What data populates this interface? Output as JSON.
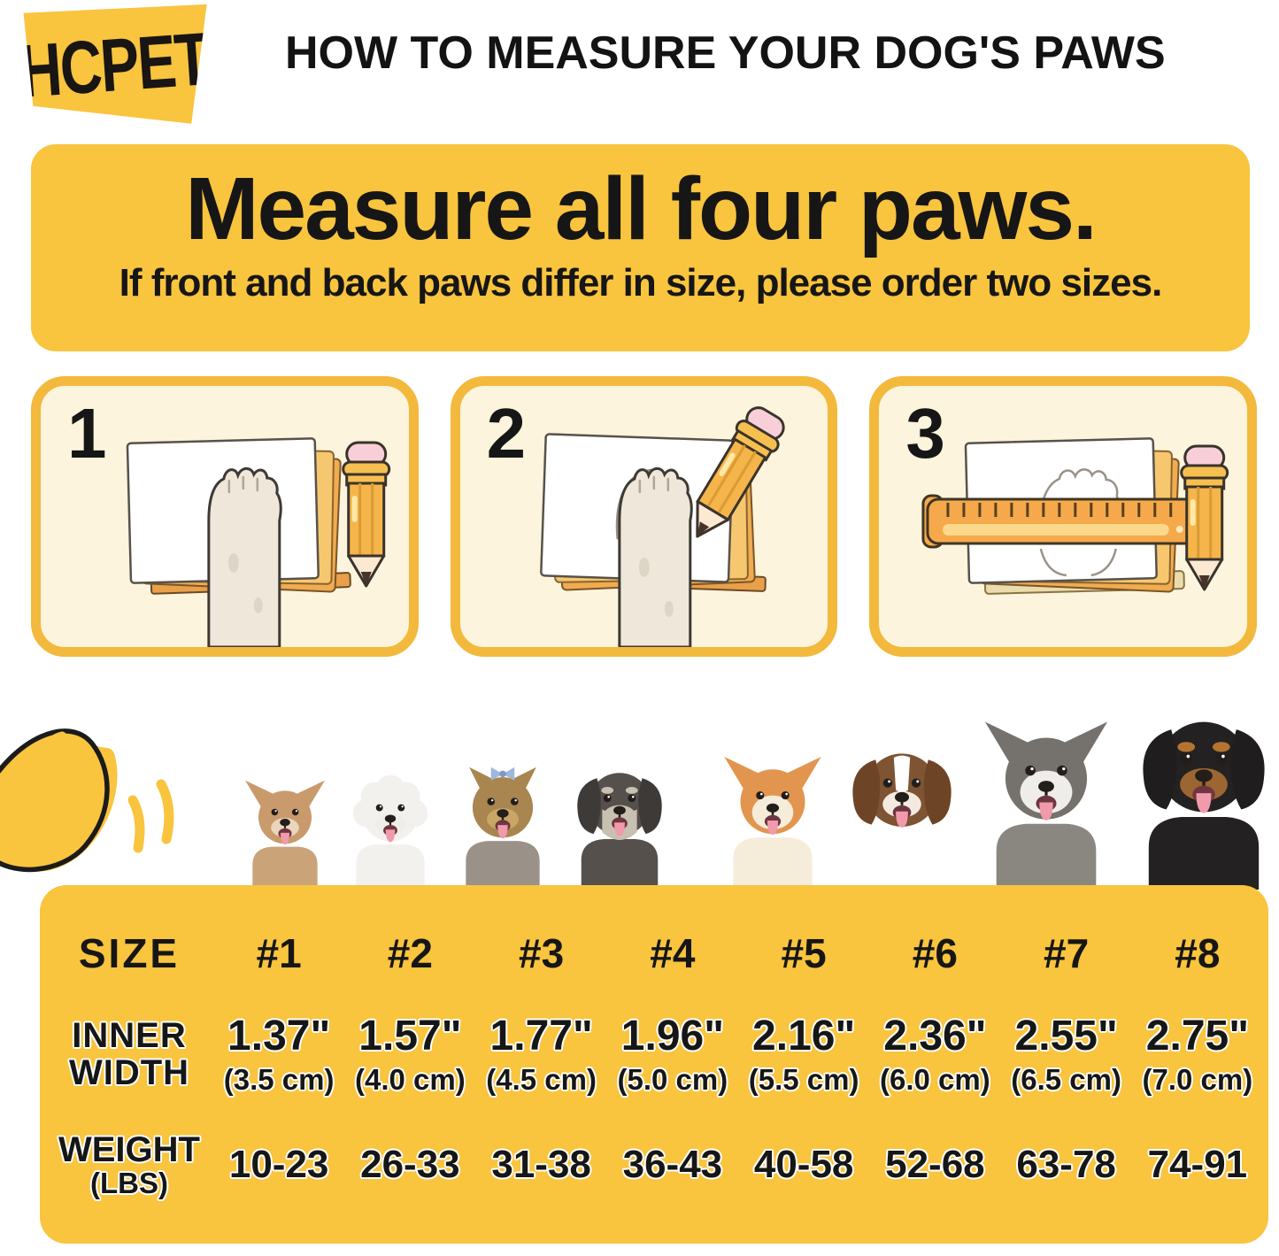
{
  "colors": {
    "brand_yellow": "#F9C43E",
    "panel_cream": "#FCF4DC",
    "panel_border": "#F3B93C",
    "ink": "#161616"
  },
  "header": {
    "brand": "HCPET",
    "title": "HOW TO MEASURE YOUR DOG'S PAWS"
  },
  "banner": {
    "heading": "Measure all four paws.",
    "subheading": "If front and back paws differ in size, please order two sizes."
  },
  "steps": [
    {
      "number": "1",
      "illustration": "paw-on-paper"
    },
    {
      "number": "2",
      "illustration": "trace-paw-with-pencil"
    },
    {
      "number": "3",
      "illustration": "measure-outline-with-ruler"
    }
  ],
  "decorations": {
    "swoosh": "yellow-wavy-swoosh"
  },
  "dogs": [
    {
      "breed": "chihuahua",
      "ear": "point",
      "main": "#C99A6B",
      "chest": "#CBA379",
      "muzzle": "#E9D6BC",
      "tongue": true
    },
    {
      "breed": "bichon-frise",
      "ear": "fluff",
      "main": "#F3F1ED",
      "chest": "#F3F1ED",
      "muzzle": "#EFEDE8",
      "tongue": true
    },
    {
      "breed": "yorkshire-terrier",
      "ear": "smallpoint",
      "main": "#A9854F",
      "chest": "#9A9288",
      "muzzle": "#C9A566",
      "bow": true,
      "tongue": true
    },
    {
      "breed": "miniature-schnauzer",
      "ear": "drop",
      "earFill": "#3E3A37",
      "main": "#55504B",
      "chest": "#55504B",
      "muzzle": "#C8C0B0",
      "beard": true,
      "brows": "#C8C0B0",
      "tongue": true
    },
    {
      "breed": "shiba-inu",
      "ear": "point",
      "main": "#E2954F",
      "chest": "#F6ECDA",
      "muzzle": "#F6ECDA",
      "bigMuzzle": true,
      "tongue": true
    },
    {
      "breed": "australian-shepherd",
      "ear": "drop",
      "earFill": "#6E4426",
      "main": "#7E5433",
      "chest": "#FFFFFF",
      "muzzle": "#F3EBE0",
      "blaze": "#FFFFFF",
      "tongue": true
    },
    {
      "breed": "alaskan-malamute",
      "ear": "point",
      "main": "#75716C",
      "chest": "#8A8680",
      "muzzle": "#EFEDEA",
      "bigMuzzle": true,
      "tongue": true
    },
    {
      "breed": "rottweiler",
      "ear": "drop",
      "earFill": "#1F1D1E",
      "main": "#242122",
      "chest": "#242122",
      "muzzle": "#9C6632",
      "brows": "#B4732F",
      "tongue": true
    }
  ],
  "size_chart": {
    "type": "table",
    "size_label": "SIZE",
    "inner_width_label": [
      "INNER",
      "WIDTH"
    ],
    "weight_label": [
      "WEIGHT",
      "(LBS)"
    ],
    "sizes": [
      "#1",
      "#2",
      "#3",
      "#4",
      "#5",
      "#6",
      "#7",
      "#8"
    ],
    "inner_width_in": [
      "1.37\"",
      "1.57\"",
      "1.77\"",
      "1.96\"",
      "2.16\"",
      "2.36\"",
      "2.55\"",
      "2.75\""
    ],
    "inner_width_cm": [
      "(3.5 cm)",
      "(4.0 cm)",
      "(4.5 cm)",
      "(5.0 cm)",
      "(5.5 cm)",
      "(6.0 cm)",
      "(6.5 cm)",
      "(7.0 cm)"
    ],
    "weight_lbs": [
      "10-23",
      "26-33",
      "31-38",
      "36-43",
      "40-58",
      "52-68",
      "63-78",
      "74-91"
    ]
  }
}
